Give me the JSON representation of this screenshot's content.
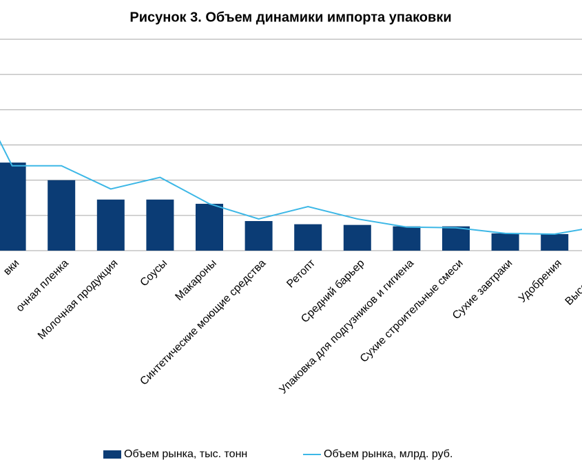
{
  "chart_data": {
    "type": "bar",
    "title": "Рисунок 3. Объем динамики импорта упаковки",
    "categories": [
      null,
      "вки",
      "очная  пленка",
      "Молочная  продукция",
      "Соусы",
      "Макароны",
      "Синтетические моющие средства",
      "Ретопт",
      "Средний барьер",
      "Упаковка для подгузников и гигиена",
      "Сухие строительные смеси",
      "Сухие завтраки",
      "Удобрения",
      "Высокий ба"
    ],
    "series": [
      {
        "name": "Объем рынка, тыс. тонн",
        "type": "bar",
        "color": "#0b3c75",
        "values": [
          null,
          2.5,
          2.0,
          1.45,
          1.45,
          1.33,
          0.84,
          0.75,
          0.73,
          0.69,
          0.69,
          0.49,
          0.47,
          null
        ]
      },
      {
        "name": "Объем рынка, млрд. руб.",
        "type": "line",
        "color": "#3cb7e6",
        "values": [
          5.2,
          2.41,
          2.41,
          1.75,
          2.08,
          1.33,
          0.9,
          1.25,
          0.9,
          0.67,
          0.65,
          0.49,
          0.47,
          0.71
        ]
      }
    ],
    "ylim": [
      0,
      6
    ],
    "yticks": [
      0,
      1,
      2,
      3,
      4,
      5,
      6
    ],
    "grid": true,
    "legend": "bottom"
  }
}
